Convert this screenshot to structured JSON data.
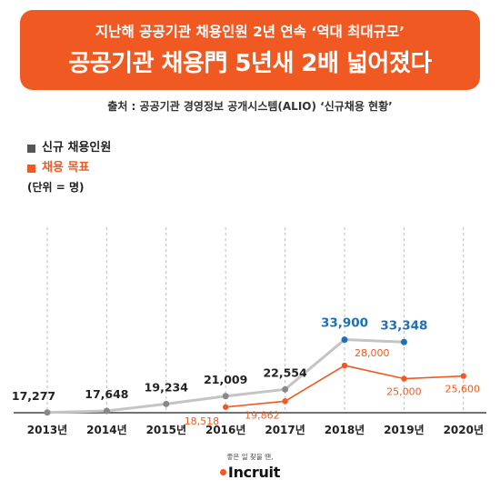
{
  "header": {
    "subtitle": "지난해 공공기관 채용인원 2년 연속 ‘역대 최대규모’",
    "title": "공공기관 채용門 5년새 2배 넓어졌다"
  },
  "source": "출처 : 공공기관 경영정보 공개시스템(ALIO) ‘신규채용 현황’",
  "logo": {
    "tagline": "좋은 일 찾을 땐,",
    "brand": "Incruit"
  },
  "colors": {
    "accent": "#f05a22",
    "actual_line": "#c4c4c4",
    "actual_marker": "#888888",
    "highlight": "#1f6fb5",
    "target": "#f05a22"
  },
  "chart_data": {
    "type": "line",
    "categories": [
      "2013년",
      "2014년",
      "2015년",
      "2016년",
      "2017년",
      "2018년",
      "2019년",
      "2020년"
    ],
    "unit_label": "(단위 = 명)",
    "ylim": [
      0,
      40000
    ],
    "grid": "vertical-dashed",
    "legend_position": "top-left",
    "series": [
      {
        "name": "신규 채용인원",
        "values": [
          17277,
          17648,
          19234,
          21009,
          22554,
          33900,
          33348,
          null
        ],
        "labels": [
          "17,277",
          "17,648",
          "19,234",
          "21,009",
          "22,554",
          "33,900",
          "33,348",
          ""
        ]
      },
      {
        "name": "채용 목표",
        "values": [
          null,
          null,
          null,
          18518,
          19862,
          28000,
          25000,
          25600
        ],
        "labels": [
          "",
          "",
          "",
          "18,518",
          "19,862",
          "28,000",
          "25,000",
          "25,600"
        ]
      }
    ]
  }
}
